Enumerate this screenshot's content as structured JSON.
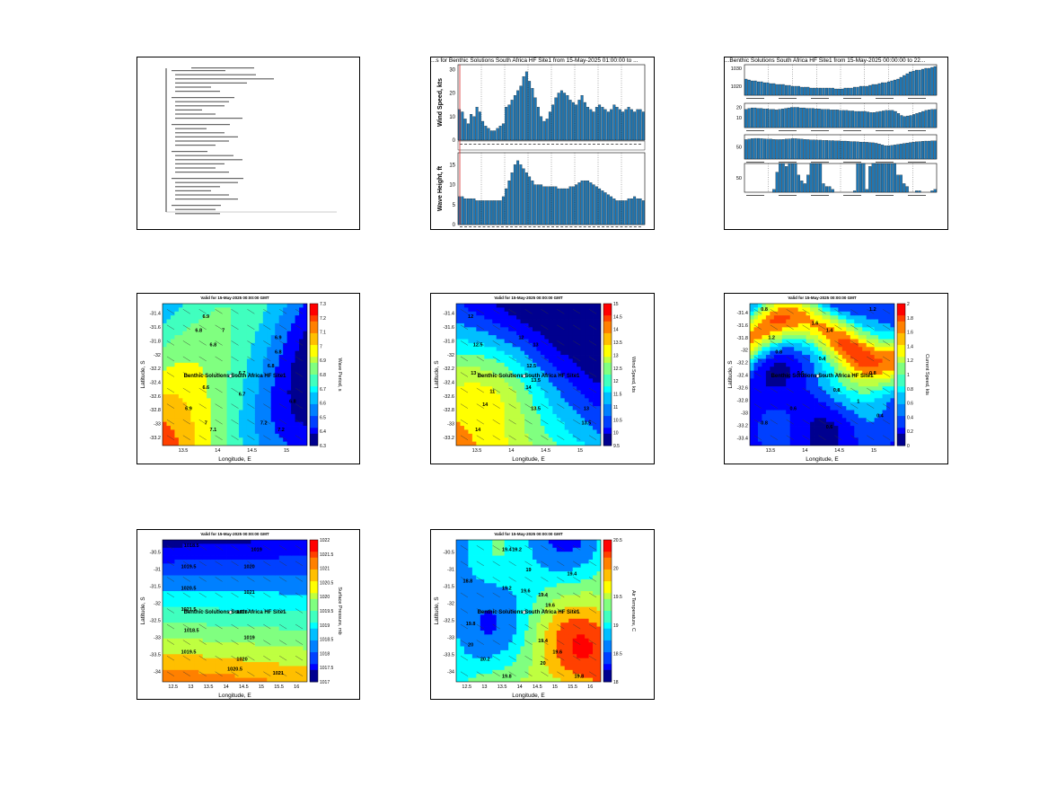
{
  "summary_panel": {
    "lines": [
      "",
      "",
      "",
      "",
      "",
      "",
      "",
      "",
      "",
      "",
      "",
      "",
      "",
      "",
      "",
      "",
      "",
      "",
      "",
      "",
      "",
      "",
      "",
      "",
      "",
      "",
      "",
      "",
      "",
      "",
      "",
      "",
      "",
      ""
    ]
  },
  "chart_data": [
    {
      "type": "bar",
      "title": "...s for Benthic Solutions South Africa HF Site1 from 15-May-2025 01:00:00 to ...",
      "subplots": [
        {
          "ylabel": "Wind Speed, kts",
          "yticks": [
            "0",
            "10",
            "20",
            "30"
          ],
          "ylim": [
            0,
            32
          ],
          "values": [
            13,
            12,
            9,
            7,
            11,
            10,
            14,
            12,
            8,
            6,
            5,
            4,
            4,
            5,
            6,
            7,
            14,
            15,
            17,
            19,
            21,
            23,
            27,
            29,
            25,
            22,
            18,
            14,
            10,
            8,
            9,
            12,
            15,
            18,
            20,
            21,
            20,
            19,
            17,
            16,
            15,
            17,
            19,
            16,
            14,
            13,
            12,
            14,
            15,
            14,
            13,
            12,
            13,
            15,
            14,
            13,
            12,
            13,
            14,
            13,
            12,
            13,
            13,
            12
          ]
        },
        {
          "ylabel": "Wave Height, ft",
          "yticks": [
            "0",
            "5",
            "10",
            "15"
          ],
          "ylim": [
            0,
            18
          ],
          "values": [
            7,
            7,
            6.5,
            6.5,
            6.5,
            6.5,
            6,
            6,
            6,
            6,
            6,
            6,
            6,
            6,
            6,
            7,
            9,
            11,
            13,
            15,
            16,
            15,
            14,
            13,
            12,
            11,
            10,
            10,
            10,
            9.5,
            9.5,
            9.5,
            9.5,
            9.5,
            9,
            9,
            9,
            9,
            9.5,
            9.5,
            10,
            10.5,
            11,
            11,
            11,
            10.5,
            10,
            9.5,
            9,
            8.5,
            8,
            7.5,
            7,
            6.5,
            6,
            6,
            6,
            6,
            6.5,
            6.5,
            7,
            6.5,
            6.5,
            6
          ]
        }
      ]
    },
    {
      "type": "bar",
      "title": "...Benthic Solutions South Africa HF Site1 from 15-May-2025 00:00:00 to 22...",
      "subplots": [
        {
          "ylabel": "",
          "yticks": [
            "1020",
            "1030"
          ],
          "ylim": [
            1015,
            1032
          ],
          "values": [
            1024,
            1023.5,
            1023,
            1023,
            1022.5,
            1022.5,
            1022,
            1022,
            1021.5,
            1021.5,
            1021,
            1021,
            1021,
            1020.5,
            1020.5,
            1020,
            1020,
            1020,
            1019.5,
            1019.5,
            1019.5,
            1019,
            1019,
            1019,
            1019,
            1019,
            1019,
            1019,
            1019,
            1018.5,
            1018.5,
            1018.5,
            1019,
            1019,
            1019,
            1019.5,
            1019.5,
            1020,
            1020,
            1020,
            1020.5,
            1021,
            1021,
            1021.5,
            1022,
            1022,
            1022.5,
            1023,
            1023.5,
            1024,
            1025,
            1026,
            1027,
            1028,
            1028.5,
            1029,
            1029,
            1029.5,
            1030,
            1030,
            1030.5,
            1031
          ]
        },
        {
          "ylabel": "",
          "yticks": [
            "10",
            "20"
          ],
          "ylim": [
            0,
            24
          ],
          "values": [
            18,
            19,
            19.5,
            19.5,
            19,
            19,
            18.5,
            18.5,
            18,
            18,
            17.5,
            18,
            18.5,
            19,
            19.5,
            20,
            20,
            20,
            19.5,
            19.5,
            19,
            19,
            19,
            18.5,
            18.5,
            18,
            18,
            18,
            17.5,
            17.5,
            17.5,
            17,
            17,
            17,
            16.5,
            16.5,
            16,
            16,
            16,
            16,
            15.5,
            15,
            15,
            15.5,
            16,
            16.5,
            17,
            17,
            17,
            16,
            14,
            12,
            11,
            11.5,
            12,
            13,
            14,
            15,
            16,
            17,
            17.5,
            18,
            18
          ]
        },
        {
          "ylabel": "",
          "yticks": [
            "50"
          ],
          "ylim": [
            0,
            100
          ],
          "values": [
            80,
            82,
            84,
            85,
            85,
            84,
            83,
            82,
            82,
            81,
            80,
            80,
            81,
            82,
            83,
            84,
            84,
            83,
            82,
            81,
            80,
            79,
            79,
            78,
            78,
            77,
            77,
            76,
            76,
            75,
            75,
            74,
            74,
            73,
            72,
            72,
            71,
            70,
            70,
            69,
            68,
            67,
            65,
            62,
            58,
            55,
            55,
            56,
            58,
            60,
            62,
            64,
            66,
            68,
            70,
            71,
            72,
            73,
            74,
            74,
            75,
            75
          ]
        },
        {
          "ylabel": "",
          "yticks": [
            "50"
          ],
          "ylim": [
            0,
            100
          ],
          "values": [
            0,
            0,
            0,
            0,
            0,
            0,
            0,
            0,
            0,
            10,
            70,
            100,
            100,
            90,
            100,
            100,
            100,
            60,
            40,
            30,
            60,
            100,
            100,
            100,
            100,
            30,
            20,
            20,
            10,
            0,
            0,
            0,
            0,
            0,
            0,
            5,
            100,
            100,
            100,
            10,
            90,
            100,
            100,
            100,
            100,
            100,
            100,
            100,
            100,
            60,
            60,
            30,
            20,
            0,
            0,
            5,
            5,
            0,
            0,
            0,
            5,
            10
          ]
        }
      ]
    },
    {
      "type": "heatmap",
      "title": "Valid for 15-May-2025 00:00:00 GMT",
      "xlabel": "Longitude, E",
      "ylabel": "Latitude, S",
      "colorbar_label": "Wave Period, s",
      "xticks": [
        "13.5",
        "14",
        "14.5",
        "15"
      ],
      "yticks": [
        "-31.4",
        "-31.6",
        "-31.8",
        "-32",
        "-32.2",
        "-32.4",
        "-32.6",
        "-32.8",
        "-33",
        "-33.2"
      ],
      "cticks": [
        "7.3",
        "7.2",
        "7.1",
        "7",
        "6.9",
        "6.8",
        "6.7",
        "6.6",
        "6.5",
        "6.4",
        "6.3"
      ],
      "contour_labels": [
        "6.9",
        "7",
        "6.8",
        "6.8",
        "6.7",
        "6.9",
        "6.8",
        "6.8",
        "6.6",
        "6.7",
        "6.8",
        "6.9",
        "7",
        "7.1",
        "7.2",
        "7.2"
      ],
      "site_label": "Benthic Solutions South Africa HF Site1"
    },
    {
      "type": "heatmap",
      "title": "Valid for 15-May-2025 00:00:00 GMT",
      "xlabel": "Longitude, E",
      "ylabel": "Latitude, S",
      "colorbar_label": "Wind Speed, kts",
      "xticks": [
        "13.5",
        "14",
        "14.5",
        "15"
      ],
      "yticks": [
        "-31.4",
        "-31.6",
        "-31.8",
        "-32",
        "-32.2",
        "-32.4",
        "-32.6",
        "-32.8",
        "-33",
        "-33.2"
      ],
      "cticks": [
        "15",
        "14.5",
        "14",
        "13.5",
        "13",
        "12.5",
        "12",
        "11.5",
        "11",
        "10.5",
        "10",
        "9.5"
      ],
      "contour_labels": [
        "12",
        "12.5",
        "13",
        "13",
        "12",
        "12.5",
        "13.5",
        "11",
        "14",
        "14",
        "14",
        "13.5",
        "13",
        "13.5"
      ],
      "site_label": "Benthic Solutions South Africa HF Site1"
    },
    {
      "type": "heatmap",
      "title": "Valid for 15-May-2025 00:00:00 GMT",
      "xlabel": "Longitude, E",
      "ylabel": "Latitude, S",
      "colorbar_label": "Current Speed, kts",
      "xticks": [
        "13.5",
        "14",
        "14.5",
        "15"
      ],
      "yticks": [
        "-31.4",
        "-31.6",
        "-31.8",
        "-32",
        "-32.2",
        "-32.4",
        "-32.6",
        "-32.8",
        "-33",
        "-33.2",
        "-33.4"
      ],
      "cticks": [
        "2",
        "1.8",
        "1.6",
        "1.4",
        "1.2",
        "1",
        "0.8",
        "0.6",
        "0.4",
        "0.2",
        "0"
      ],
      "contour_labels": [
        "0.8",
        "1.2",
        "1.6",
        "1.4",
        "1.2",
        "0.8",
        "0.4",
        "0.6",
        "0.8",
        "0.8",
        "1",
        "0.6",
        "0.4",
        "0.8",
        "0.6"
      ],
      "site_label": "Benthic Solutions South Africa HF Site1"
    },
    {
      "type": "heatmap",
      "title": "Valid for 15-May-2025 00:00:00 GMT",
      "xlabel": "Longitude, E",
      "ylabel": "Latitude, S",
      "colorbar_label": "Surface Pressure, mb",
      "xticks": [
        "12.5",
        "13",
        "13.5",
        "14",
        "14.5",
        "15",
        "15.5",
        "16"
      ],
      "yticks": [
        "-30.5",
        "-31",
        "-31.5",
        "-32",
        "-32.5",
        "-33",
        "-33.5",
        "-34"
      ],
      "cticks": [
        "1022",
        "1021.5",
        "1021",
        "1020.5",
        "1020",
        "1019.5",
        "1019",
        "1018.5",
        "1018",
        "1017.5",
        "1017"
      ],
      "contour_labels": [
        "1018.5",
        "1019",
        "1019.5",
        "1020",
        "1020.5",
        "1021",
        "1021.5",
        "1018",
        "1018.5",
        "1019",
        "1019.5",
        "1020",
        "1020.5",
        "1021"
      ],
      "site_label": "Benthic Solutions South Africa HF Site1"
    },
    {
      "type": "heatmap",
      "title": "Valid for 15-May-2025 00:00:00 GMT",
      "xlabel": "Longitude, E",
      "ylabel": "Latitude, S",
      "colorbar_label": "Air Temperature, C",
      "xticks": [
        "12.5",
        "13",
        "13.5",
        "14",
        "14.5",
        "15",
        "15.5",
        "16"
      ],
      "yticks": [
        "-30.5",
        "-31",
        "-31.5",
        "-32",
        "-32.5",
        "-33",
        "-33.5",
        "-34"
      ],
      "cticks": [
        "20.5",
        "20",
        "19.5",
        "19",
        "18.5",
        "18"
      ],
      "contour_labels": [
        "19.4",
        "19.2",
        "19",
        "18.8",
        "19.2",
        "19.6",
        "19.4",
        "19.4",
        "19.6",
        "19.8",
        "20",
        "20.2",
        "19.4",
        "19.6",
        "19.8",
        "19.8",
        "20"
      ],
      "site_label": "Benthic Solutions South Africa HF Site1"
    }
  ]
}
